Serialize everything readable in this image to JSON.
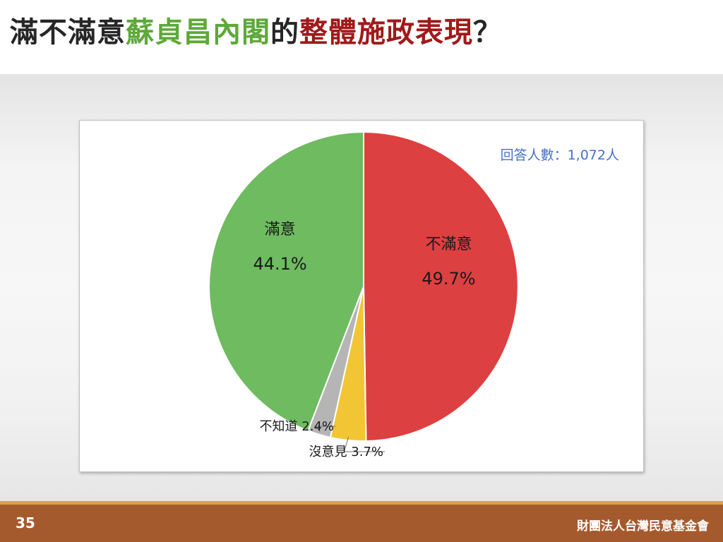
{
  "slide": {
    "title_parts": [
      {
        "text": "滿不滿意",
        "color": "#262626"
      },
      {
        "text": "蘇貞昌內閣",
        "color": "#5ea83a"
      },
      {
        "text": "的",
        "color": "#262626"
      },
      {
        "text": "整體施政表現",
        "color": "#a01a1a"
      },
      {
        "text": "？",
        "color": "#262626"
      }
    ],
    "page_number": "35",
    "organization": "財團法人台灣民意基金會"
  },
  "chart_data": {
    "type": "pie",
    "title": "",
    "note": "回答人數：1,072人",
    "slices": [
      {
        "name": "不滿意",
        "value": 49.7,
        "label": "49.7%",
        "color": "#dd4040"
      },
      {
        "name": "沒意見",
        "value": 3.7,
        "label": "3.7%",
        "color": "#f2c534"
      },
      {
        "name": "不知道",
        "value": 2.4,
        "label": "2.4%",
        "color": "#b5b5b5"
      },
      {
        "name": "滿意",
        "value": 44.1,
        "label": "44.1%",
        "color": "#6ebb60"
      }
    ]
  }
}
